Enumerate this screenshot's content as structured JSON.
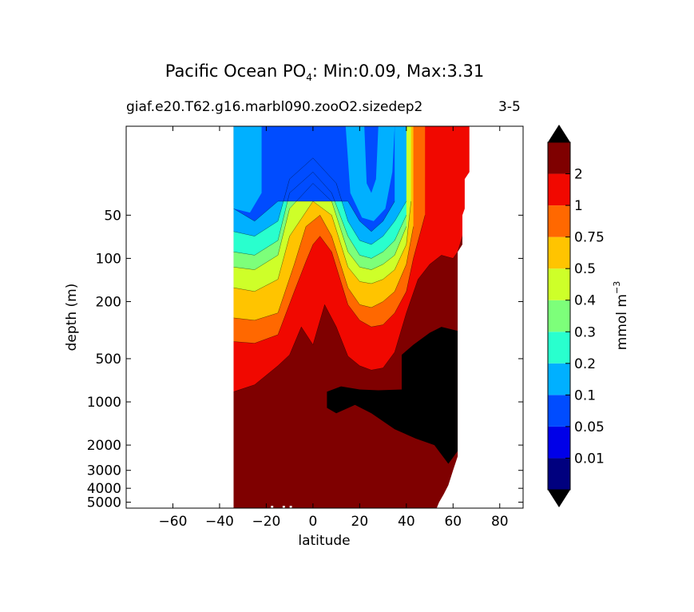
{
  "title": {
    "prefix": "Pacific Ocean PO",
    "subscript": "4",
    "suffix": ": Min:0.09, Max:3.31"
  },
  "subtitle": "giaf.e20.T62.g16.marbl090.zooO2.sizedep2",
  "season": "3-5",
  "chart_data": {
    "type": "contourf",
    "xlabel": "latitude",
    "ylabel": "depth (m)",
    "xlim": [
      -80,
      90
    ],
    "ylim_depth": [
      5500,
      12
    ],
    "y_scale": "log (reversed, depth increasing downward)",
    "xticks": [
      -60,
      -40,
      -20,
      0,
      20,
      40,
      60,
      80
    ],
    "xtick_labels": [
      "−60",
      "−40",
      "−20",
      "0",
      "20",
      "40",
      "60",
      "80"
    ],
    "yticks": [
      50,
      100,
      200,
      500,
      1000,
      2000,
      3000,
      4000,
      5000
    ],
    "ytick_labels": [
      "50",
      "100",
      "200",
      "500",
      "1000",
      "2000",
      "3000",
      "4000",
      "5000"
    ],
    "data_extent_lat": [
      -34,
      67
    ],
    "missing_value_color": "#000000",
    "colorbar": {
      "label": "mmol m",
      "label_exponent": "−3",
      "levels": [
        0.01,
        0.05,
        0.1,
        0.2,
        0.3,
        0.4,
        0.5,
        0.75,
        1,
        2
      ],
      "level_labels": [
        "0.01",
        "0.05",
        "0.1",
        "0.2",
        "0.3",
        "0.4",
        "0.5",
        "0.75",
        "1",
        "2"
      ],
      "colors": [
        "#00007f",
        "#0000e8",
        "#004cff",
        "#00b0ff",
        "#29ffce",
        "#7dff7a",
        "#ceff29",
        "#ffc400",
        "#ff6800",
        "#f10800",
        "#7f0000"
      ],
      "extend": "both",
      "extend_min_color": "#000000",
      "extend_max_color": "#000000"
    },
    "contour_boundaries": [
      {
        "level": 0.1,
        "lat": [
          -34,
          -25,
          -15,
          10,
          15,
          20,
          25,
          30,
          35
        ],
        "depth": [
          45,
          55,
          40,
          40,
          40,
          55,
          65,
          55,
          40
        ]
      },
      {
        "level": 0.2,
        "lat": [
          -34,
          -25,
          -15,
          -10,
          0,
          10,
          15,
          20,
          25,
          30,
          35,
          40
        ],
        "depth": [
          65,
          70,
          55,
          28,
          20,
          30,
          55,
          75,
          80,
          70,
          55,
          40
        ]
      },
      {
        "level": 0.3,
        "lat": [
          -34,
          -25,
          -15,
          -10,
          0,
          8,
          15,
          20,
          25,
          30,
          35,
          40
        ],
        "depth": [
          90,
          95,
          75,
          35,
          25,
          35,
          70,
          95,
          100,
          90,
          75,
          50
        ]
      },
      {
        "level": 0.4,
        "lat": [
          -34,
          -25,
          -15,
          -10,
          0,
          8,
          15,
          20,
          25,
          30,
          35,
          40
        ],
        "depth": [
          115,
          120,
          95,
          45,
          30,
          40,
          90,
          115,
          120,
          110,
          95,
          60
        ]
      },
      {
        "level": 0.5,
        "lat": [
          -34,
          -25,
          -15,
          -10,
          0,
          8,
          15,
          20,
          25,
          30,
          35,
          40,
          42
        ],
        "depth": [
          160,
          170,
          140,
          70,
          40,
          50,
          115,
          145,
          150,
          140,
          120,
          80,
          40
        ]
      },
      {
        "level": 0.75,
        "lat": [
          -34,
          -25,
          -15,
          -8,
          -3,
          3,
          8,
          15,
          20,
          25,
          30,
          35,
          40,
          43
        ],
        "depth": [
          260,
          270,
          240,
          110,
          60,
          50,
          70,
          160,
          210,
          220,
          200,
          170,
          110,
          60
        ]
      },
      {
        "level": 1,
        "lat": [
          -34,
          -25,
          -15,
          -8,
          -3,
          0,
          3,
          8,
          15,
          20,
          25,
          30,
          35,
          40,
          43,
          48
        ],
        "depth": [
          380,
          390,
          340,
          170,
          105,
          80,
          70,
          90,
          210,
          270,
          300,
          290,
          240,
          170,
          100,
          50
        ]
      },
      {
        "level": 2,
        "lat": [
          -34,
          -25,
          -15,
          -10,
          -5,
          0,
          5,
          10,
          15,
          20,
          25,
          30,
          35,
          40,
          45,
          50,
          55,
          60,
          62,
          64,
          66,
          67
        ],
        "depth": [
          850,
          760,
          560,
          470,
          300,
          400,
          210,
          300,
          480,
          560,
          600,
          580,
          450,
          240,
          140,
          110,
          95,
          100,
          90,
          70,
          40,
          25
        ]
      }
    ]
  },
  "colors": {
    "background": "#ffffff",
    "axes": "#000000"
  }
}
